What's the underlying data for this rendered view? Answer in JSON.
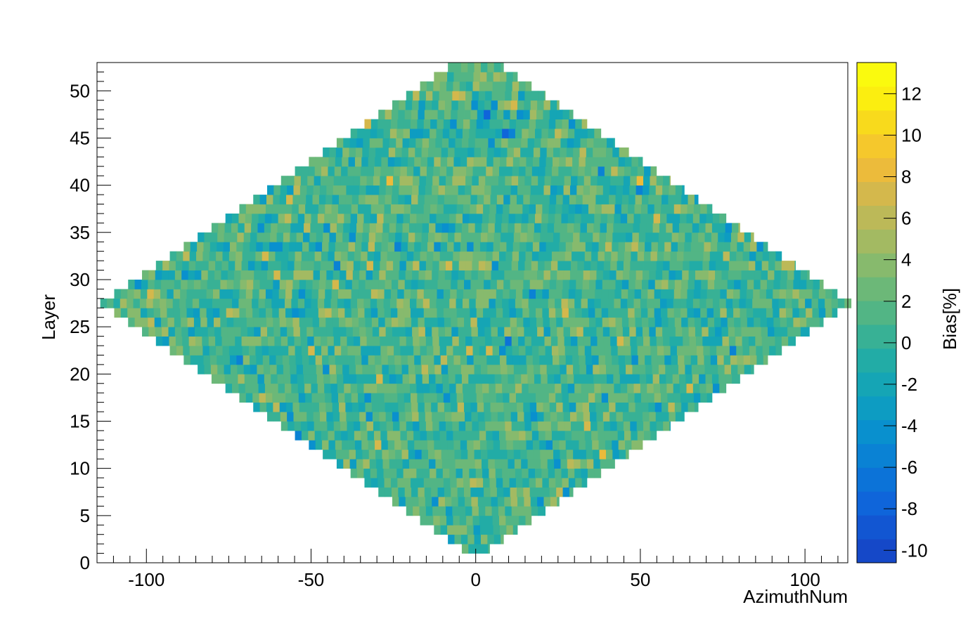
{
  "chart_data": {
    "type": "heatmap",
    "title": "",
    "xlabel": "AzimuthNum",
    "ylabel": "Layer",
    "zlabel": "Bias[%]",
    "xlim": [
      -115,
      113
    ],
    "ylim": [
      0,
      53
    ],
    "zlim": [
      -10.6,
      13.5
    ],
    "x_ticks": [
      -100,
      -50,
      0,
      50,
      100
    ],
    "y_ticks": [
      0,
      5,
      10,
      15,
      20,
      25,
      30,
      35,
      40,
      45,
      50
    ],
    "z_ticks": [
      -10,
      -8,
      -6,
      -4,
      -2,
      0,
      2,
      4,
      6,
      8,
      10,
      12
    ],
    "grid": false,
    "shape": "diamond",
    "center_x": 0,
    "center_y": 27,
    "half_width_x_at_center": 114,
    "cell_width_x": 2,
    "cell_height_y": 1,
    "bias_mean": 1.0,
    "bias_sigma": 2.2,
    "palette": [
      "#1548c8",
      "#1256d2",
      "#0f65da",
      "#0c73d8",
      "#0a82d4",
      "#0990ce",
      "#0d9cc2",
      "#15a5b5",
      "#22aca6",
      "#38b195",
      "#52b585",
      "#6cb878",
      "#87ba6d",
      "#a3ba62",
      "#bcb958",
      "#d4b84c",
      "#ecbb3b",
      "#f5c82c",
      "#f8da1c",
      "#fbee10",
      "#fafa0e"
    ]
  }
}
